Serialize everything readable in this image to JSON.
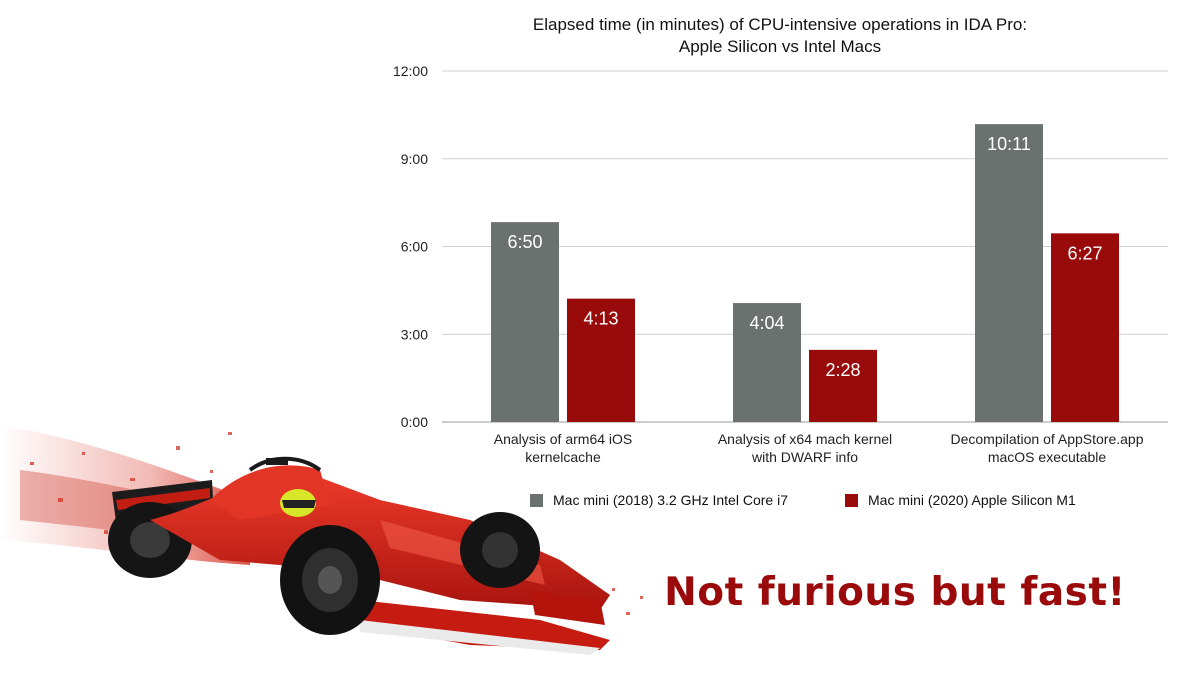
{
  "colors": {
    "intel_series": "#6b716f",
    "m1_series": "#990b0b",
    "grid": "#cfcfcf",
    "tagline": "#9b0a0a"
  },
  "illustration": {
    "subject": "red-formula-one-race-car-icon"
  },
  "tagline": "Not furious but fast!",
  "chart_data": {
    "type": "bar",
    "title": "Elapsed time (in minutes) of CPU-intensive operations in IDA Pro: Apple Silicon vs Intel Macs",
    "title_lines": [
      "Elapsed time (in minutes) of CPU-intensive operations in IDA Pro:",
      "Apple Silicon vs Intel Macs"
    ],
    "xlabel": "",
    "ylabel": "",
    "y_unit": "minutes",
    "ylim": [
      0,
      12
    ],
    "yticks": [
      0,
      3,
      6,
      9,
      12
    ],
    "ytick_labels": [
      "0:00",
      "3:00",
      "6:00",
      "9:00",
      "12:00"
    ],
    "grid": true,
    "legend": "bottom",
    "categories": [
      [
        "Analysis of arm64 iOS",
        "kernelcache"
      ],
      [
        "Analysis of x64 mach kernel",
        "with DWARF info"
      ],
      [
        "Decompilation of AppStore.app",
        "macOS executable"
      ]
    ],
    "series": [
      {
        "name": "Mac mini (2018) 3.2 GHz Intel Core i7",
        "color": "#6b716f",
        "values": [
          6.8333,
          4.0667,
          10.1833
        ],
        "labels": [
          "6:50",
          "4:04",
          "10:11"
        ]
      },
      {
        "name": "Mac mini (2020) Apple Silicon M1",
        "color": "#990b0b",
        "values": [
          4.2167,
          2.4667,
          6.45
        ],
        "labels": [
          "4:13",
          "2:28",
          "6:27"
        ]
      }
    ]
  }
}
